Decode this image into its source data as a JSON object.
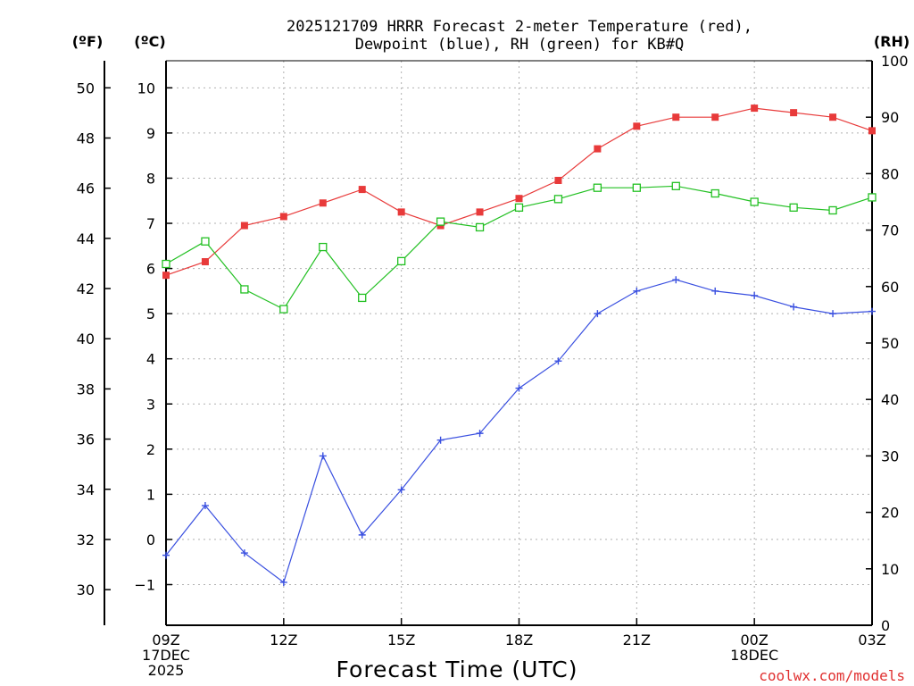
{
  "chart_data": {
    "type": "line",
    "title_line1": "2025121709 HRRR Forecast 2-meter Temperature (red),",
    "title_line2": "Dewpoint (blue), RH (green) for KB#Q",
    "xlabel": "Forecast Time (UTC)",
    "credit": "coolwx.com/models",
    "units": {
      "fahrenheit": "(ºF)",
      "celsius": "(ºC)",
      "rh": "(RH)"
    },
    "x_ticks": [
      {
        "hour": 0,
        "line1": "09Z",
        "line2": "17DEC",
        "line3": "2025"
      },
      {
        "hour": 3,
        "line1": "12Z",
        "line2": "",
        "line3": ""
      },
      {
        "hour": 6,
        "line1": "15Z",
        "line2": "",
        "line3": ""
      },
      {
        "hour": 9,
        "line1": "18Z",
        "line2": "",
        "line3": ""
      },
      {
        "hour": 12,
        "line1": "21Z",
        "line2": "",
        "line3": ""
      },
      {
        "hour": 15,
        "line1": "00Z",
        "line2": "18DEC",
        "line3": ""
      },
      {
        "hour": 18,
        "line1": "03Z",
        "line2": "",
        "line3": ""
      }
    ],
    "xlim": [
      0,
      18
    ],
    "celsius_axis": {
      "ylim": [
        -1.9,
        10.6
      ],
      "ticks": [
        "-1",
        "0",
        "1",
        "2",
        "3",
        "4",
        "5",
        "6",
        "7",
        "8",
        "9",
        "10"
      ]
    },
    "fahrenheit_axis": {
      "ticks": [
        "30",
        "32",
        "34",
        "36",
        "38",
        "40",
        "42",
        "44",
        "46",
        "48",
        "50"
      ]
    },
    "rh_axis": {
      "ylim": [
        0,
        100
      ],
      "ticks": [
        "0",
        "10",
        "20",
        "30",
        "40",
        "50",
        "60",
        "70",
        "80",
        "90",
        "100"
      ]
    },
    "series": [
      {
        "name": "Temperature",
        "unit": "C",
        "axis": "celsius",
        "color": "#e83a3a",
        "marker": "filled-square",
        "x": [
          0,
          1,
          2,
          3,
          4,
          5,
          6,
          7,
          8,
          9,
          10,
          11,
          12,
          13,
          14,
          15,
          16,
          17,
          18
        ],
        "values": [
          5.85,
          6.15,
          6.95,
          7.15,
          7.45,
          7.75,
          7.25,
          6.95,
          7.25,
          7.55,
          7.95,
          8.65,
          9.15,
          9.35,
          9.35,
          9.55,
          9.45,
          9.35,
          9.05
        ]
      },
      {
        "name": "Dewpoint",
        "unit": "C",
        "axis": "celsius",
        "color": "#3a50e0",
        "marker": "plus",
        "x": [
          0,
          1,
          2,
          3,
          4,
          5,
          6,
          7,
          8,
          9,
          10,
          11,
          12,
          13,
          14,
          15,
          16,
          17,
          18
        ],
        "values": [
          -0.35,
          0.75,
          -0.3,
          -0.95,
          1.85,
          0.1,
          1.1,
          2.2,
          2.35,
          3.35,
          3.95,
          5.0,
          5.5,
          5.75,
          5.5,
          5.4,
          5.15,
          5.0,
          5.05
        ]
      },
      {
        "name": "RH",
        "unit": "%",
        "axis": "rh",
        "color": "#22c022",
        "marker": "open-square",
        "x": [
          0,
          1,
          2,
          3,
          4,
          5,
          6,
          7,
          8,
          9,
          10,
          11,
          12,
          13,
          14,
          15,
          16,
          17,
          18
        ],
        "values": [
          64,
          68,
          59.5,
          56,
          67,
          58,
          64.5,
          71.5,
          70.5,
          74,
          75.5,
          77.5,
          77.5,
          77.8,
          76.5,
          75,
          74,
          73.5,
          75.8
        ]
      }
    ]
  }
}
